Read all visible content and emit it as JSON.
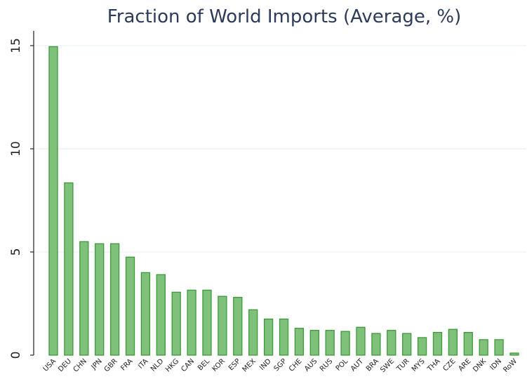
{
  "chart_data": {
    "type": "bar",
    "title": "Fraction of World Imports (Average, %)",
    "xlabel": "",
    "ylabel": "",
    "ylim": [
      0,
      15.5
    ],
    "yticks": [
      "0",
      "5",
      "10",
      "15"
    ],
    "grid": true,
    "categories": [
      "USA",
      "DEU",
      "CHN",
      "JPN",
      "GBR",
      "FRA",
      "ITA",
      "NLD",
      "HKG",
      "CAN",
      "BEL",
      "KOR",
      "ESP",
      "MEX",
      "IND",
      "SGP",
      "CHE",
      "AUS",
      "RUS",
      "POL",
      "AUT",
      "BRA",
      "SWE",
      "TUR",
      "MYS",
      "THA",
      "CZE",
      "ARE",
      "DNK",
      "IDN",
      "RoW"
    ],
    "values": [
      14.95,
      8.35,
      5.5,
      5.4,
      5.4,
      4.75,
      4.0,
      3.9,
      3.05,
      3.15,
      3.15,
      2.85,
      2.8,
      2.2,
      1.75,
      1.75,
      1.3,
      1.2,
      1.2,
      1.15,
      1.35,
      1.05,
      1.2,
      1.05,
      0.85,
      1.1,
      1.25,
      1.1,
      0.75,
      0.75,
      0.1
    ],
    "colors": {
      "bar_fill": "#7fc17a",
      "bar_stroke": "#3d9a3a",
      "title": "#2d3a5a"
    }
  }
}
